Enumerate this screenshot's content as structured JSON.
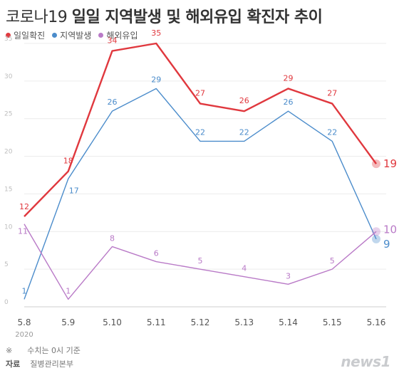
{
  "header": {
    "title_prefix": "코로나19",
    "title_main": "일일 지역발생 및 해외유입 확진자 추이"
  },
  "footer": {
    "note_mark": "※",
    "note": "수치는 0시 기준",
    "source_label": "자료",
    "source": "질병관리본부"
  },
  "brand": {
    "label": "news1"
  },
  "chart_data": {
    "type": "line",
    "categories": [
      "5.8",
      "5.9",
      "5.10",
      "5.11",
      "5.12",
      "5.13",
      "5.14",
      "5.15",
      "5.16"
    ],
    "year_label": "2020",
    "ylim": [
      0,
      35
    ],
    "yticks": [
      0,
      5,
      10,
      15,
      20,
      25,
      30,
      35
    ],
    "grid": true,
    "legend_position": "top-left",
    "series": [
      {
        "name": "일일확진",
        "color": "#e0383e",
        "values": [
          12,
          18,
          34,
          35,
          27,
          26,
          29,
          27,
          19
        ]
      },
      {
        "name": "지역발생",
        "color": "#4b8ccb",
        "values": [
          1,
          17,
          26,
          29,
          22,
          22,
          26,
          22,
          9
        ]
      },
      {
        "name": "해외유입",
        "color": "#b97ac7",
        "values": [
          11,
          1,
          8,
          6,
          5,
          4,
          3,
          5,
          10
        ]
      }
    ]
  }
}
